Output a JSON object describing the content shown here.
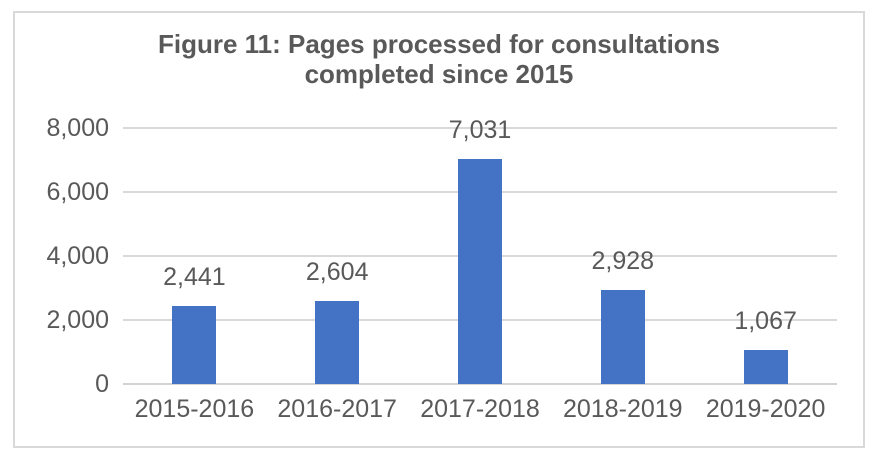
{
  "chart_data": {
    "type": "bar",
    "title": "Figure 11: Pages processed for consultations completed since 2015",
    "title_lines": [
      "Figure 11: Pages processed for consultations",
      "completed since 2015"
    ],
    "categories": [
      "2015-2016",
      "2016-2017",
      "2017-2018",
      "2018-2019",
      "2019-2020"
    ],
    "values": [
      2441,
      2604,
      7031,
      2928,
      1067
    ],
    "value_labels": [
      "2,441",
      "2,604",
      "7,031",
      "2,928",
      "1,067"
    ],
    "xlabel": "",
    "ylabel": "",
    "ylim": [
      0,
      8000
    ],
    "y_ticks": [
      {
        "value": 0,
        "label": "0"
      },
      {
        "value": 2000,
        "label": "2,000"
      },
      {
        "value": 4000,
        "label": "4,000"
      },
      {
        "value": 6000,
        "label": "6,000"
      },
      {
        "value": 8000,
        "label": "8,000"
      }
    ],
    "grid": true,
    "legend": "none",
    "colors": {
      "bar": "#4472C4",
      "gridline": "#D9D9D9",
      "axis_line": "#D3D3D3",
      "text": "#595959",
      "frame_border": "#D9D9D9",
      "background": "#FFFFFF"
    }
  }
}
